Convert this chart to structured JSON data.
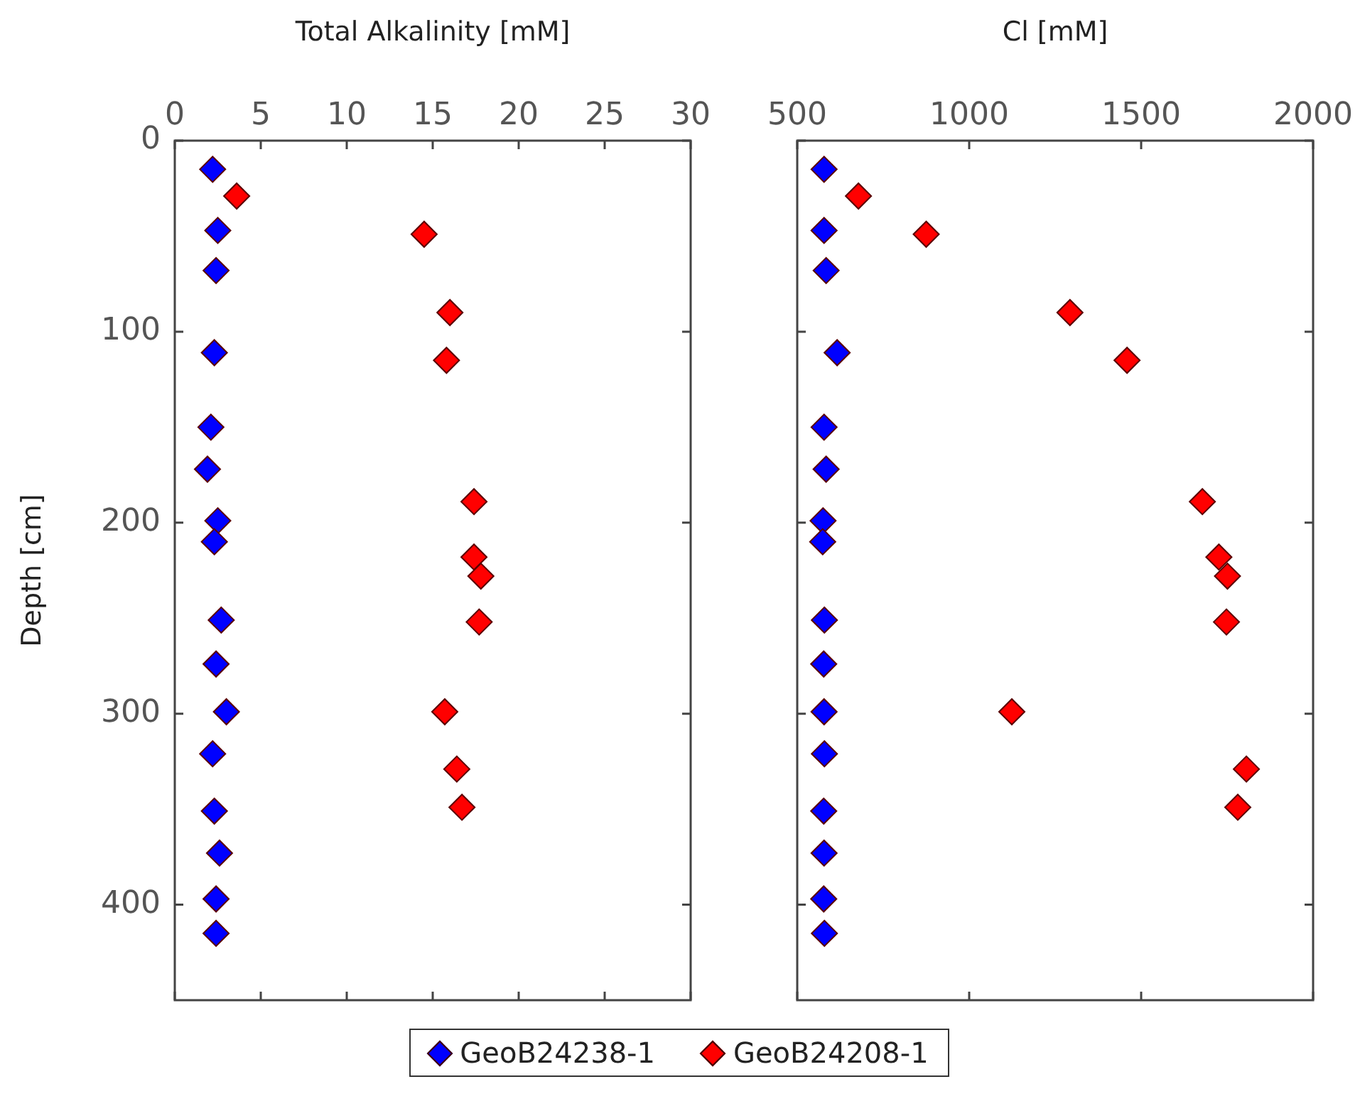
{
  "chart_data": [
    {
      "type": "scatter",
      "xlabel": "Total Alkalinity [mM]",
      "ylabel": "Depth [cm]",
      "xlim": [
        0,
        30
      ],
      "xticks": [
        0,
        5,
        10,
        15,
        20,
        25,
        30
      ],
      "ylim": [
        450,
        0
      ],
      "yticks": [
        0,
        100,
        200,
        300,
        400
      ],
      "grid": false,
      "marker": "diamond",
      "legend": "bottom",
      "series": [
        {
          "name": "GeoB24238-1",
          "color": "#0000ff",
          "x": [
            2.2,
            2.5,
            2.4,
            2.3,
            2.1,
            1.9,
            2.5,
            2.3,
            2.7,
            2.4,
            3.0,
            2.2,
            2.3,
            2.6,
            2.4,
            2.4
          ],
          "values": [
            15,
            47,
            68,
            111,
            150,
            172,
            199,
            210,
            251,
            274,
            299,
            321,
            351,
            373,
            397,
            415
          ]
        },
        {
          "name": "GeoB24208-1",
          "color": "#ff0000",
          "x": [
            3.6,
            14.5,
            16.0,
            15.8,
            17.4,
            17.4,
            17.8,
            17.7,
            15.7,
            16.4,
            16.7
          ],
          "values": [
            29,
            49,
            90,
            115,
            189,
            218,
            228,
            252,
            299,
            329,
            349
          ]
        }
      ]
    },
    {
      "type": "scatter",
      "xlabel": "Cl [mM]",
      "xlim": [
        500,
        2000
      ],
      "xticks": [
        500,
        1000,
        1500,
        2000
      ],
      "ylim": [
        450,
        0
      ],
      "yticks": [
        0,
        100,
        200,
        300,
        400
      ],
      "tick_labels": "x",
      "grid": false,
      "marker": "diamond",
      "legend": "bottom",
      "series": [
        {
          "name": "GeoB24238-1",
          "color": "#0000ff",
          "x": [
            578,
            578,
            584,
            616,
            578,
            584,
            575,
            574,
            579,
            577,
            578,
            579,
            577,
            578,
            577,
            579
          ],
          "values": [
            15,
            47,
            68,
            111,
            150,
            172,
            199,
            210,
            251,
            274,
            299,
            321,
            351,
            373,
            397,
            415
          ]
        },
        {
          "name": "GeoB24208-1",
          "color": "#ff0000",
          "x": [
            678,
            875,
            1293,
            1459,
            1678,
            1726,
            1751,
            1748,
            1124,
            1806,
            1781
          ],
          "values": [
            29,
            49,
            90,
            115,
            189,
            218,
            228,
            252,
            299,
            329,
            349
          ]
        }
      ]
    }
  ]
}
